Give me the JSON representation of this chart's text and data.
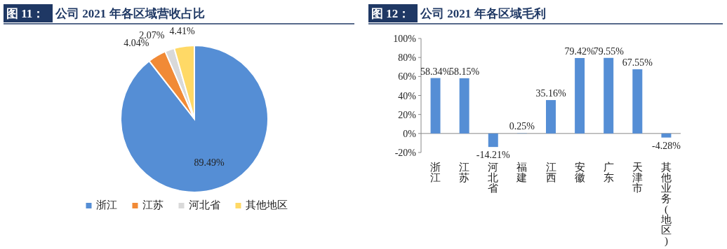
{
  "chart_data": [
    {
      "type": "pie",
      "title": "图 11：公司 2021 年各区域营收占比",
      "categories": [
        "浙江",
        "江苏",
        "河北省",
        "其他地区"
      ],
      "values": [
        89.49,
        4.04,
        2.07,
        4.41
      ],
      "colors": [
        "#558ed5",
        "#f18a36",
        "#d9d9d9",
        "#ffd966"
      ],
      "value_labels": [
        "89.49%",
        "4.04%",
        "2.07%",
        "4.41%"
      ],
      "legend": "bottom"
    },
    {
      "type": "bar",
      "title": "图 12：公司 2021 年各区域毛利",
      "categories": [
        "浙江",
        "江苏",
        "河北省",
        "福建",
        "江西",
        "安徽",
        "广东",
        "天津市",
        "其他业务(地区)"
      ],
      "values": [
        58.34,
        58.15,
        -14.21,
        0.25,
        35.16,
        79.42,
        79.55,
        67.55,
        -4.28
      ],
      "color": "#558ed5",
      "value_labels": [
        "58.34%",
        "58.15%",
        "-14.21%",
        "0.25%",
        "35.16%",
        "79.42%",
        "79.55%",
        "67.55%",
        "-4.28%"
      ],
      "ylim": [
        -20,
        100
      ],
      "yticks": [
        {
          "value": -20,
          "label": "-20%"
        },
        {
          "value": 0,
          "label": "0%"
        },
        {
          "value": 20,
          "label": "20%"
        },
        {
          "value": 40,
          "label": "40%"
        },
        {
          "value": 60,
          "label": "60%"
        },
        {
          "value": 80,
          "label": "80%"
        },
        {
          "value": 100,
          "label": "100%"
        }
      ]
    }
  ]
}
